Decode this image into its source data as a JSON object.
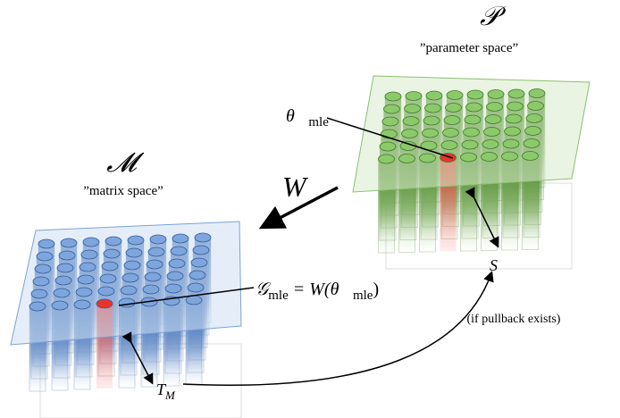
{
  "labels": {
    "parameter_space": {
      "symbol": "𝒫",
      "caption": "”parameter space”"
    },
    "matrix_space": {
      "symbol": "𝓜",
      "caption": "”matrix space”"
    },
    "map": "W",
    "theta": {
      "base": "θ⃗",
      "sub": "mle"
    },
    "g": {
      "base": "𝒢",
      "sub": "mle",
      "eq": " = W(",
      "arg": "θ⃗",
      "arg_sub": "mle",
      "close": ")"
    },
    "s": "S",
    "t": {
      "base": "T",
      "sub": "M"
    },
    "pullback": "(if pullback exists)"
  }
}
